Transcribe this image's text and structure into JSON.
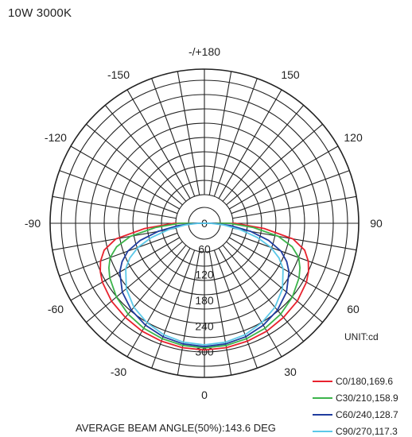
{
  "title": "10W 3000K",
  "unit_label": "UNIT:cd",
  "footer": "AVERAGE BEAM ANGLE(50%):143.6 DEG",
  "chart_data": {
    "type": "polar",
    "title": "10W 3000K",
    "angle_labels": [
      {
        "angle": 180,
        "text": "-/+180"
      },
      {
        "angle": 150,
        "text": "150"
      },
      {
        "angle": 120,
        "text": "120"
      },
      {
        "angle": 90,
        "text": "90"
      },
      {
        "angle": 60,
        "text": "60"
      },
      {
        "angle": 30,
        "text": "30"
      },
      {
        "angle": 0,
        "text": "0"
      },
      {
        "angle": -30,
        "text": "-30"
      },
      {
        "angle": -60,
        "text": "-60"
      },
      {
        "angle": -90,
        "text": "-90"
      },
      {
        "angle": -120,
        "text": "-120"
      },
      {
        "angle": -150,
        "text": "-150"
      }
    ],
    "radial_ticks": [
      0,
      60,
      120,
      180,
      240,
      300
    ],
    "radial_max": 360,
    "unit": "cd",
    "series": [
      {
        "name": "C0/180,169.6",
        "color": "#e8222e",
        "points": [
          [
            -90,
            72
          ],
          [
            -85,
            140
          ],
          [
            -80,
            210
          ],
          [
            -75,
            242
          ],
          [
            -70,
            258
          ],
          [
            -65,
            268
          ],
          [
            -60,
            275
          ],
          [
            -50,
            283
          ],
          [
            -40,
            287
          ],
          [
            -30,
            291
          ],
          [
            -20,
            293
          ],
          [
            -10,
            295
          ],
          [
            0,
            296
          ],
          [
            10,
            295
          ],
          [
            20,
            293
          ],
          [
            30,
            291
          ],
          [
            40,
            287
          ],
          [
            50,
            283
          ],
          [
            60,
            275
          ],
          [
            65,
            268
          ],
          [
            70,
            258
          ],
          [
            75,
            242
          ],
          [
            80,
            210
          ],
          [
            85,
            140
          ],
          [
            90,
            72
          ]
        ]
      },
      {
        "name": "C30/210,158.9",
        "color": "#3cb44b",
        "points": [
          [
            -90,
            58
          ],
          [
            -85,
            115
          ],
          [
            -80,
            175
          ],
          [
            -75,
            212
          ],
          [
            -70,
            234
          ],
          [
            -65,
            246
          ],
          [
            -60,
            255
          ],
          [
            -50,
            268
          ],
          [
            -40,
            277
          ],
          [
            -30,
            283
          ],
          [
            -20,
            287
          ],
          [
            -10,
            290
          ],
          [
            0,
            291
          ],
          [
            10,
            290
          ],
          [
            20,
            287
          ],
          [
            30,
            283
          ],
          [
            40,
            277
          ],
          [
            50,
            268
          ],
          [
            60,
            255
          ],
          [
            65,
            246
          ],
          [
            70,
            234
          ],
          [
            75,
            212
          ],
          [
            80,
            175
          ],
          [
            85,
            115
          ],
          [
            90,
            58
          ]
        ]
      },
      {
        "name": "C60/240,128.7",
        "color": "#1f3c9e",
        "points": [
          [
            -90,
            20
          ],
          [
            -85,
            60
          ],
          [
            -80,
            110
          ],
          [
            -75,
            155
          ],
          [
            -70,
            190
          ],
          [
            -65,
            212
          ],
          [
            -60,
            228
          ],
          [
            -50,
            250
          ],
          [
            -40,
            265
          ],
          [
            -30,
            275
          ],
          [
            -20,
            282
          ],
          [
            -10,
            286
          ],
          [
            0,
            288
          ],
          [
            10,
            286
          ],
          [
            20,
            282
          ],
          [
            30,
            275
          ],
          [
            40,
            265
          ],
          [
            50,
            250
          ],
          [
            60,
            228
          ],
          [
            65,
            212
          ],
          [
            70,
            190
          ],
          [
            75,
            155
          ],
          [
            80,
            110
          ],
          [
            85,
            60
          ],
          [
            90,
            20
          ]
        ]
      },
      {
        "name": "C90/270,117.3",
        "color": "#5bc8e8",
        "points": [
          [
            -90,
            14
          ],
          [
            -85,
            45
          ],
          [
            -80,
            85
          ],
          [
            -75,
            128
          ],
          [
            -70,
            165
          ],
          [
            -65,
            192
          ],
          [
            -60,
            212
          ],
          [
            -50,
            238
          ],
          [
            -40,
            256
          ],
          [
            -30,
            268
          ],
          [
            -20,
            277
          ],
          [
            -10,
            282
          ],
          [
            0,
            284
          ],
          [
            10,
            282
          ],
          [
            20,
            277
          ],
          [
            30,
            268
          ],
          [
            40,
            256
          ],
          [
            50,
            238
          ],
          [
            60,
            212
          ],
          [
            65,
            192
          ],
          [
            70,
            165
          ],
          [
            75,
            128
          ],
          [
            80,
            85
          ],
          [
            85,
            45
          ],
          [
            90,
            14
          ]
        ]
      }
    ]
  }
}
